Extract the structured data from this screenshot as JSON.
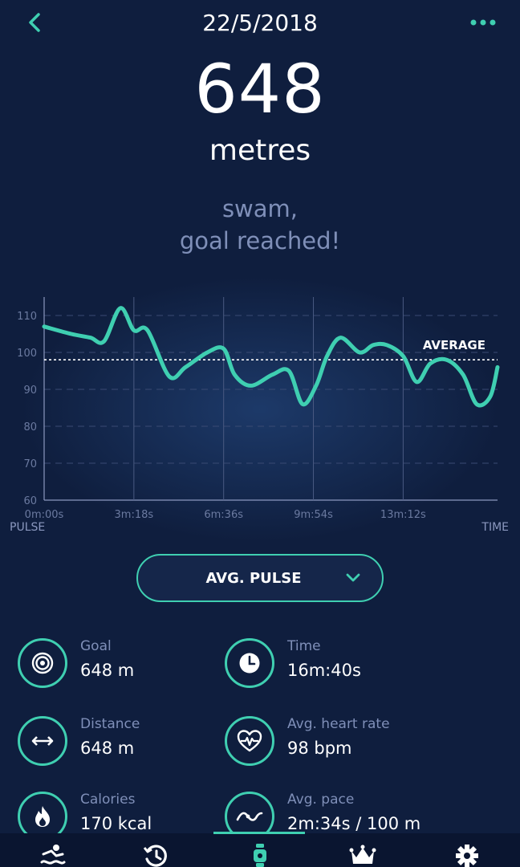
{
  "header": {
    "date": "22/5/2018"
  },
  "summary": {
    "value": "648",
    "unit": "metres",
    "message_line1": "swam,",
    "message_line2": "goal reached!"
  },
  "chart_data": {
    "type": "line",
    "ylabel": "PULSE",
    "xlabel": "TIME",
    "x_tick_labels": [
      "0m:00s",
      "3m:18s",
      "6m:36s",
      "9m:54s",
      "13m:12s"
    ],
    "y_ticks": [
      60,
      70,
      80,
      90,
      100,
      110
    ],
    "ylim": [
      60,
      115
    ],
    "average_label": "AVERAGE",
    "average": 98,
    "series": [
      {
        "color": "#3fcfb1",
        "x_minutes": [
          0,
          1.0,
          1.7,
          2.2,
          2.8,
          3.3,
          3.8,
          4.6,
          5.2,
          6.0,
          6.6,
          7.0,
          7.6,
          8.4,
          9.0,
          9.5,
          10.0,
          10.4,
          10.9,
          11.6,
          12.1,
          12.6,
          13.2,
          13.7,
          14.2,
          14.8,
          15.4,
          15.9,
          16.4,
          16.67
        ],
        "values": [
          107,
          105,
          104,
          103,
          112,
          106,
          106,
          93.5,
          96,
          100,
          101,
          94,
          91,
          94,
          95,
          86,
          91,
          99,
          104,
          100,
          102,
          102,
          99,
          92,
          97,
          98,
          94,
          86,
          88,
          96
        ]
      }
    ],
    "grid": true
  },
  "selector": {
    "label": "AVG. PULSE"
  },
  "stats": [
    {
      "icon": "target-icon",
      "label": "Goal",
      "value": "648 m"
    },
    {
      "icon": "clock-icon",
      "label": "Time",
      "value": "16m:40s"
    },
    {
      "icon": "distance-arrows-icon",
      "label": "Distance",
      "value": "648 m"
    },
    {
      "icon": "heart-rate-icon",
      "label": "Avg. heart rate",
      "value": "98 bpm"
    },
    {
      "icon": "flame-icon",
      "label": "Calories",
      "value": "170 kcal"
    },
    {
      "icon": "pace-wave-icon",
      "label": "Avg. pace",
      "value": "2m:34s / 100 m"
    }
  ],
  "tabs": [
    "activity-icon",
    "history-icon",
    "device-icon",
    "crown-icon",
    "settings-icon"
  ],
  "colors": {
    "accent": "#3fcfb1",
    "background": "#0f1e3e",
    "muted_text": "#7f8fb8"
  }
}
